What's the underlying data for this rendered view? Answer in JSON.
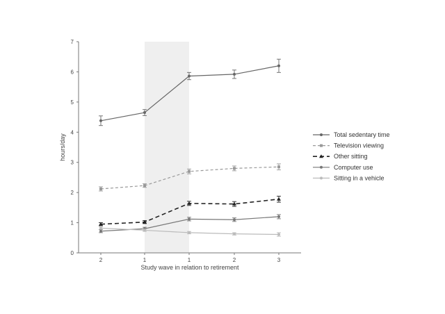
{
  "chart_data": {
    "type": "line",
    "title": "",
    "xlabel": "Study wave in relation to retirement",
    "ylabel": "hours/day",
    "categories": [
      "2",
      "1",
      "1",
      "2",
      "3"
    ],
    "shaded_interval": [
      1,
      2
    ],
    "ylim": [
      0,
      7
    ],
    "yticks": [
      0,
      1,
      2,
      3,
      4,
      5,
      6,
      7
    ],
    "grid": false,
    "legend_position": "right",
    "series": [
      {
        "name": "Total sedentary time",
        "values": [
          4.38,
          4.65,
          5.86,
          5.92,
          6.2
        ],
        "errors": [
          0.16,
          0.1,
          0.12,
          0.14,
          0.22
        ],
        "color": "#666666",
        "style": "solid",
        "marker": "circle"
      },
      {
        "name": "Television viewing",
        "values": [
          2.12,
          2.23,
          2.7,
          2.8,
          2.85
        ],
        "errors": [
          0.07,
          0.06,
          0.08,
          0.08,
          0.1
        ],
        "color": "#999999",
        "style": "dashed",
        "marker": "square"
      },
      {
        "name": "Other sitting",
        "values": [
          0.95,
          1.02,
          1.64,
          1.62,
          1.78
        ],
        "errors": [
          0.05,
          0.05,
          0.07,
          0.08,
          0.1
        ],
        "color": "#222222",
        "style": "bold-dashed",
        "marker": "triangle"
      },
      {
        "name": "Computer use",
        "values": [
          0.72,
          0.8,
          1.12,
          1.1,
          1.2
        ],
        "errors": [
          0.05,
          0.05,
          0.06,
          0.06,
          0.07
        ],
        "color": "#777777",
        "style": "solid",
        "marker": "circle"
      },
      {
        "name": "Sitting in a vehicle",
        "values": [
          0.82,
          0.75,
          0.67,
          0.63,
          0.61
        ],
        "errors": [
          0.04,
          0.04,
          0.04,
          0.04,
          0.06
        ],
        "color": "#bbbbbb",
        "style": "solid",
        "marker": "circle"
      }
    ]
  }
}
